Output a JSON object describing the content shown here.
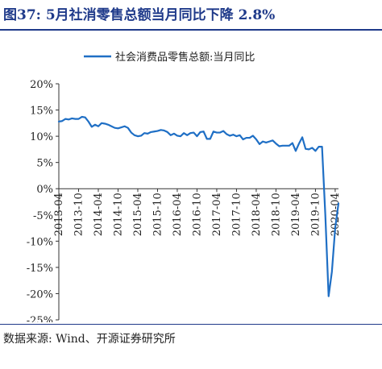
{
  "figure": {
    "title": "图37:  5月社消零售总额当月同比下降 2.8%",
    "source": "数据来源:  Wind、开源证券研究所"
  },
  "chart_data": {
    "type": "line",
    "title": "",
    "xlabel": "",
    "ylabel": "",
    "ylim": [
      -25,
      20
    ],
    "ytick_values": [
      -25,
      -20,
      -15,
      -10,
      -5,
      0,
      5,
      10,
      15,
      20
    ],
    "ytick_labels": [
      "-25%",
      "-20%",
      "-15%",
      "-10%",
      "-5%",
      "0%",
      "5%",
      "10%",
      "15%",
      "20%"
    ],
    "xtick_labels": [
      "2013-04",
      "2013-10",
      "2014-04",
      "2014-10",
      "2015-04",
      "2015-10",
      "2016-04",
      "2016-10",
      "2017-04",
      "2017-10",
      "2018-04",
      "2018-10",
      "2019-04",
      "2019-10",
      "2020-04"
    ],
    "legend_position": "top",
    "grid": false,
    "series": [
      {
        "name": "社会消费品零售总额:当月同比",
        "color": "#1f6fc5",
        "x": [
          "2013-04",
          "2013-05",
          "2013-06",
          "2013-07",
          "2013-08",
          "2013-09",
          "2013-10",
          "2013-11",
          "2013-12",
          "2014-01",
          "2014-02",
          "2014-03",
          "2014-04",
          "2014-05",
          "2014-06",
          "2014-07",
          "2014-08",
          "2014-09",
          "2014-10",
          "2014-11",
          "2014-12",
          "2015-01",
          "2015-02",
          "2015-03",
          "2015-04",
          "2015-05",
          "2015-06",
          "2015-07",
          "2015-08",
          "2015-09",
          "2015-10",
          "2015-11",
          "2015-12",
          "2016-01",
          "2016-02",
          "2016-03",
          "2016-04",
          "2016-05",
          "2016-06",
          "2016-07",
          "2016-08",
          "2016-09",
          "2016-10",
          "2016-11",
          "2016-12",
          "2017-01",
          "2017-02",
          "2017-03",
          "2017-04",
          "2017-05",
          "2017-06",
          "2017-07",
          "2017-08",
          "2017-09",
          "2017-10",
          "2017-11",
          "2017-12",
          "2018-01",
          "2018-02",
          "2018-03",
          "2018-04",
          "2018-05",
          "2018-06",
          "2018-07",
          "2018-08",
          "2018-09",
          "2018-10",
          "2018-11",
          "2018-12",
          "2019-01",
          "2019-02",
          "2019-03",
          "2019-04",
          "2019-05",
          "2019-06",
          "2019-07",
          "2019-08",
          "2019-09",
          "2019-10",
          "2019-11",
          "2019-12",
          "2020-01",
          "2020-02",
          "2020-03",
          "2020-04",
          "2020-05"
        ],
        "values": [
          12.8,
          12.9,
          13.3,
          13.2,
          13.4,
          13.3,
          13.3,
          13.7,
          13.6,
          12.8,
          11.8,
          12.2,
          11.9,
          12.5,
          12.4,
          12.2,
          11.9,
          11.6,
          11.5,
          11.7,
          11.9,
          11.6,
          10.7,
          10.2,
          10.0,
          10.1,
          10.6,
          10.5,
          10.8,
          10.9,
          11.0,
          11.2,
          11.1,
          10.8,
          10.2,
          10.5,
          10.1,
          10.0,
          10.6,
          10.2,
          10.6,
          10.7,
          10.0,
          10.8,
          10.9,
          9.5,
          9.5,
          10.9,
          10.7,
          10.7,
          11.0,
          10.4,
          10.1,
          10.3,
          10.0,
          10.2,
          9.4,
          9.7,
          9.7,
          10.1,
          9.4,
          8.5,
          9.0,
          8.8,
          9.0,
          9.2,
          8.6,
          8.1,
          8.2,
          8.2,
          8.2,
          8.7,
          7.2,
          8.6,
          9.8,
          7.6,
          7.5,
          7.8,
          7.2,
          8.0,
          8.0,
          -5.0,
          -20.5,
          -15.8,
          -7.5,
          -2.8
        ]
      }
    ]
  }
}
